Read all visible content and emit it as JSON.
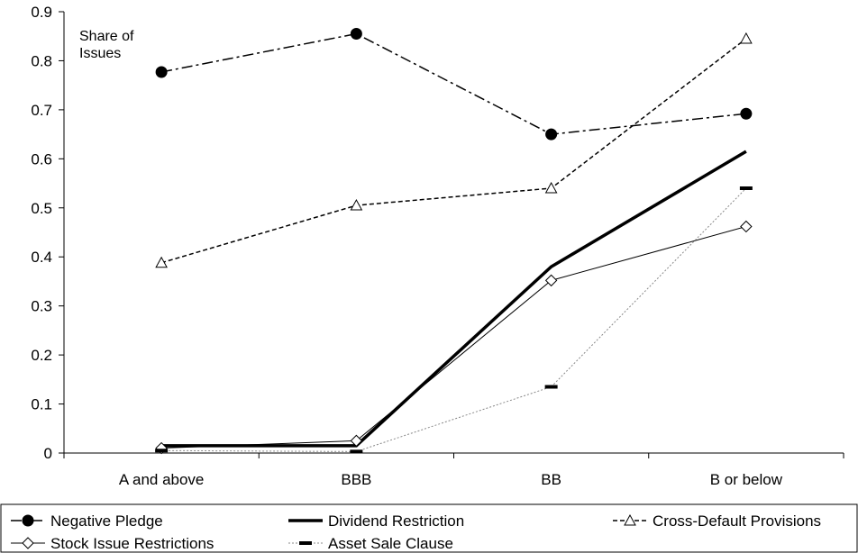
{
  "chart_data": {
    "type": "line",
    "annotation": [
      "Share of",
      "Issues"
    ],
    "categories": [
      "A and above",
      "BBB",
      "BB",
      "B or below"
    ],
    "ylim": [
      0,
      0.9
    ],
    "yticks": [
      "0",
      "0.1",
      "0.2",
      "0.3",
      "0.4",
      "0.5",
      "0.6",
      "0.7",
      "0.8",
      "0.9"
    ],
    "grid": false,
    "legend_position": "bottom",
    "series": [
      {
        "name": "Negative Pledge",
        "values": [
          0.777,
          0.855,
          0.65,
          0.692
        ],
        "style": "dash-dot",
        "marker": "filled-circle",
        "color": "#000000"
      },
      {
        "name": "Dividend Restriction",
        "values": [
          0.015,
          0.015,
          0.38,
          0.615
        ],
        "style": "solid-thick",
        "marker": "none",
        "color": "#000000"
      },
      {
        "name": "Cross-Default Provisions",
        "values": [
          0.388,
          0.505,
          0.54,
          0.845
        ],
        "style": "dashed",
        "marker": "open-triangle",
        "color": "#000000"
      },
      {
        "name": "Stock Issue Restrictions",
        "values": [
          0.01,
          0.025,
          0.352,
          0.462
        ],
        "style": "solid-thin",
        "marker": "open-diamond",
        "color": "#000000"
      },
      {
        "name": "Asset Sale Clause",
        "values": [
          0.005,
          0.003,
          0.135,
          0.54
        ],
        "style": "dotted-gray",
        "marker": "dash",
        "color": "#888888"
      }
    ]
  }
}
